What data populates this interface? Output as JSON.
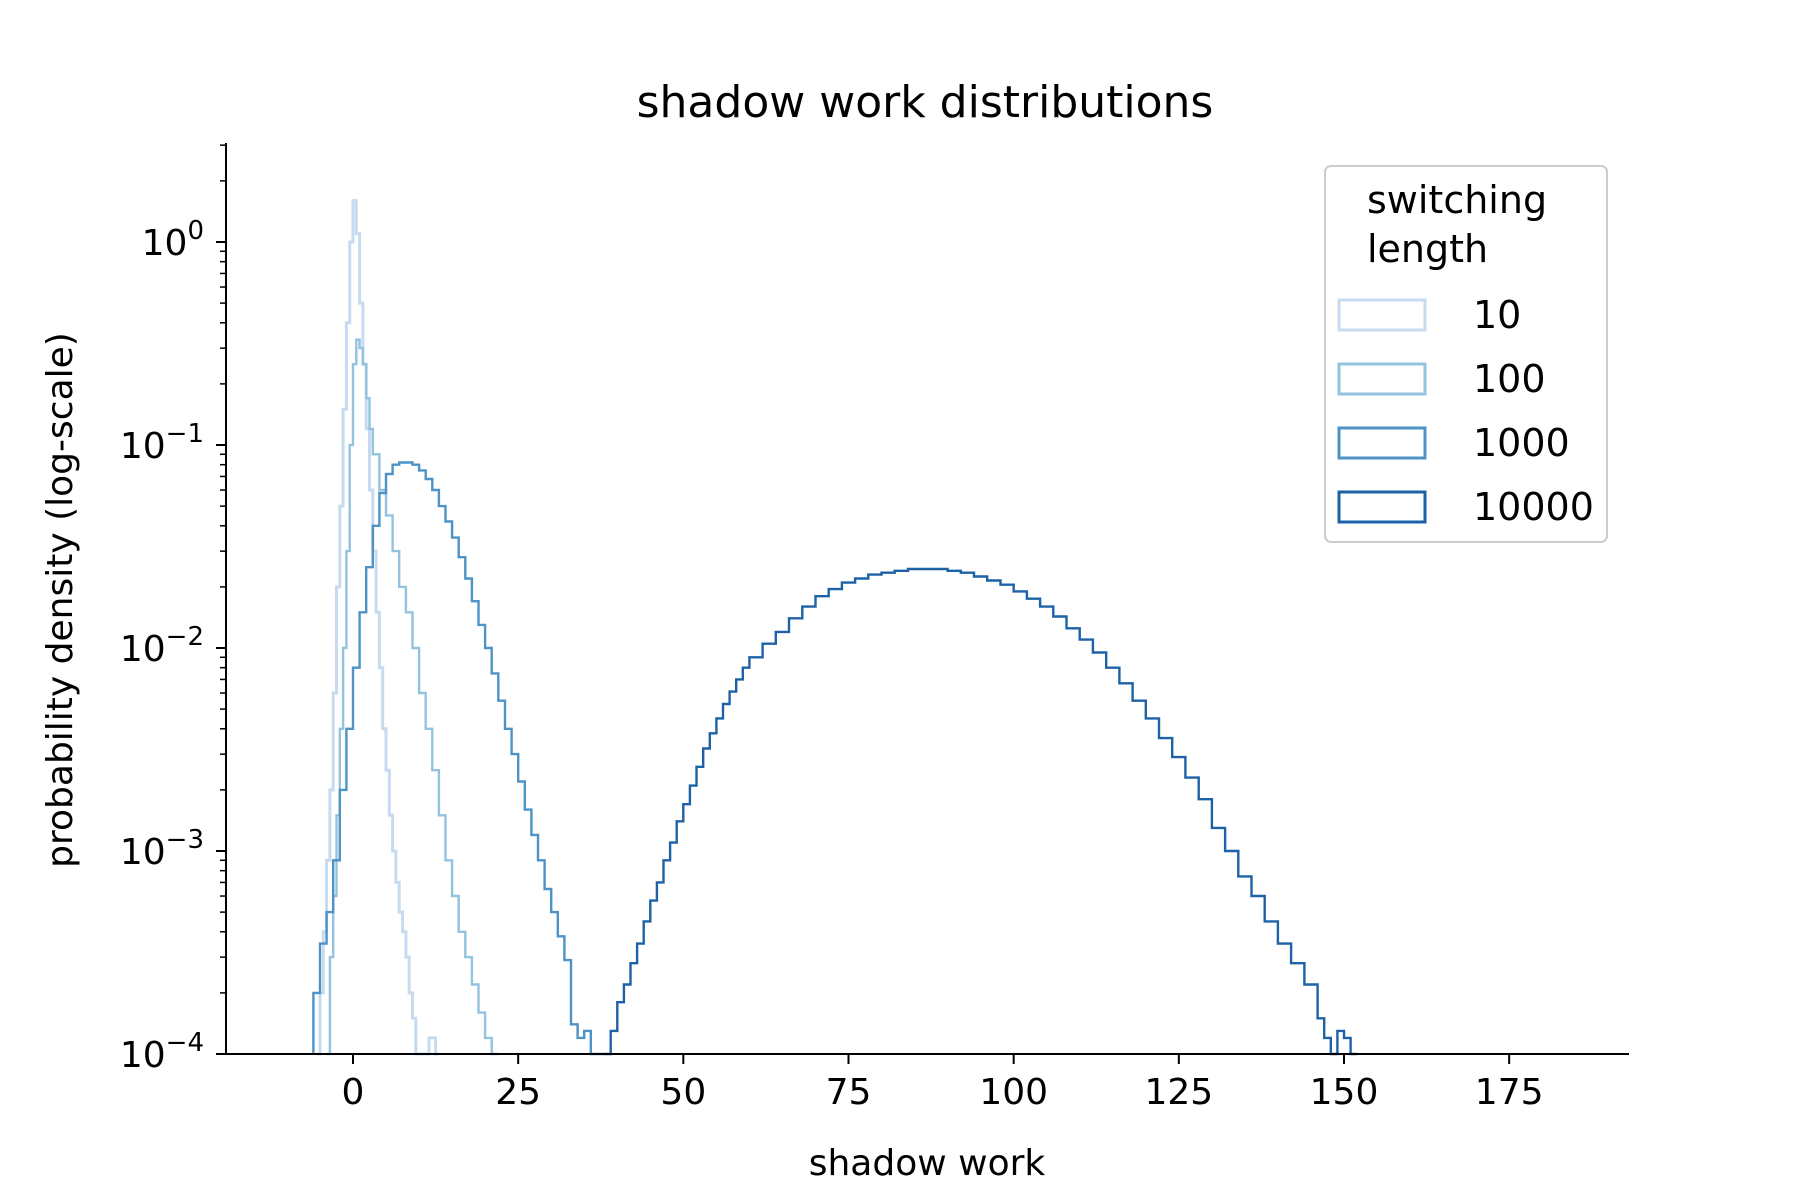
{
  "chart_data": {
    "type": "histogram (step)",
    "title": "shadow work distributions",
    "xlabel": "shadow work",
    "ylabel": "probability density (log-scale)",
    "xlim": [
      -20,
      193
    ],
    "ylim": [
      0.0001,
      3
    ],
    "yscale": "log",
    "x_ticks": [
      {
        "value": 0,
        "label": "0"
      },
      {
        "value": 25,
        "label": "25"
      },
      {
        "value": 50,
        "label": "50"
      },
      {
        "value": 75,
        "label": "75"
      },
      {
        "value": 100,
        "label": "100"
      },
      {
        "value": 125,
        "label": "125"
      },
      {
        "value": 150,
        "label": "150"
      },
      {
        "value": 175,
        "label": "175"
      }
    ],
    "y_ticks": [
      {
        "exp": 0,
        "base": "10",
        "sup": "0"
      },
      {
        "exp": -1,
        "base": "10",
        "sup": "−1"
      },
      {
        "exp": -2,
        "base": "10",
        "sup": "−2"
      },
      {
        "exp": -3,
        "base": "10",
        "sup": "−3"
      },
      {
        "exp": -4,
        "base": "10",
        "sup": "−4"
      }
    ],
    "grid": false,
    "legend": {
      "title_lines": [
        "switching",
        "length"
      ],
      "placement": "top-right"
    },
    "series": [
      {
        "name": "10",
        "color": "#c6dbef",
        "points": [
          [
            -5.5,
            0.0001
          ],
          [
            -5,
            0.0002
          ],
          [
            -4.5,
            0.0004
          ],
          [
            -4,
            0.0009
          ],
          [
            -3.5,
            0.002
          ],
          [
            -3,
            0.006
          ],
          [
            -2.5,
            0.02
          ],
          [
            -2,
            0.05
          ],
          [
            -1.5,
            0.15
          ],
          [
            -1,
            0.4
          ],
          [
            -0.5,
            1.0
          ],
          [
            0,
            1.6
          ],
          [
            0.5,
            1.1
          ],
          [
            1,
            0.5
          ],
          [
            1.5,
            0.25
          ],
          [
            2,
            0.12
          ],
          [
            2.5,
            0.06
          ],
          [
            3,
            0.03
          ],
          [
            3.5,
            0.015
          ],
          [
            4,
            0.008
          ],
          [
            4.5,
            0.004
          ],
          [
            5,
            0.0025
          ],
          [
            5.5,
            0.0015
          ],
          [
            6,
            0.001
          ],
          [
            6.5,
            0.0007
          ],
          [
            7,
            0.0005
          ],
          [
            7.5,
            0.0004
          ],
          [
            8,
            0.0003
          ],
          [
            8.5,
            0.0002
          ],
          [
            9,
            0.00015
          ],
          [
            9.5,
            0.0001
          ],
          [
            10,
            0.0001
          ],
          [
            10.5,
            0.0001
          ],
          [
            11,
            0.0001
          ],
          [
            11.5,
            0.00012
          ],
          [
            12,
            0.00012
          ],
          [
            12.5,
            0.0001
          ]
        ]
      },
      {
        "name": "100",
        "color": "#93c3de",
        "points": [
          [
            -4,
            0.0001
          ],
          [
            -3.5,
            0.0003
          ],
          [
            -3,
            0.0006
          ],
          [
            -2.5,
            0.0015
          ],
          [
            -2,
            0.004
          ],
          [
            -1.5,
            0.01
          ],
          [
            -1,
            0.03
          ],
          [
            -0.5,
            0.1
          ],
          [
            0,
            0.25
          ],
          [
            0.5,
            0.33
          ],
          [
            1,
            0.3
          ],
          [
            1.5,
            0.25
          ],
          [
            2,
            0.17
          ],
          [
            2.5,
            0.12
          ],
          [
            3,
            0.09
          ],
          [
            4,
            0.06
          ],
          [
            5,
            0.045
          ],
          [
            6,
            0.03
          ],
          [
            7,
            0.02
          ],
          [
            8,
            0.015
          ],
          [
            9,
            0.01
          ],
          [
            10,
            0.006
          ],
          [
            11,
            0.004
          ],
          [
            12,
            0.0025
          ],
          [
            13,
            0.0015
          ],
          [
            14,
            0.0009
          ],
          [
            15,
            0.0006
          ],
          [
            16,
            0.0004
          ],
          [
            17,
            0.0003
          ],
          [
            18,
            0.00022
          ],
          [
            19,
            0.00016
          ],
          [
            20,
            0.00012
          ],
          [
            21,
            0.0001
          ]
        ]
      },
      {
        "name": "1000",
        "color": "#4d93c6",
        "points": [
          [
            -6,
            0.0002
          ],
          [
            -5,
            0.00035
          ],
          [
            -4,
            0.0005
          ],
          [
            -3,
            0.0009
          ],
          [
            -2,
            0.002
          ],
          [
            -1,
            0.004
          ],
          [
            0,
            0.008
          ],
          [
            1,
            0.015
          ],
          [
            2,
            0.025
          ],
          [
            3,
            0.04
          ],
          [
            4,
            0.058
          ],
          [
            5,
            0.072
          ],
          [
            6,
            0.08
          ],
          [
            7,
            0.082
          ],
          [
            8,
            0.082
          ],
          [
            9,
            0.08
          ],
          [
            10,
            0.075
          ],
          [
            11,
            0.068
          ],
          [
            12,
            0.06
          ],
          [
            13,
            0.05
          ],
          [
            14,
            0.042
          ],
          [
            15,
            0.035
          ],
          [
            16,
            0.028
          ],
          [
            17,
            0.022
          ],
          [
            18,
            0.017
          ],
          [
            19,
            0.013
          ],
          [
            20,
            0.01
          ],
          [
            21,
            0.0075
          ],
          [
            22,
            0.0055
          ],
          [
            23,
            0.004
          ],
          [
            24,
            0.003
          ],
          [
            25,
            0.0022
          ],
          [
            26,
            0.0016
          ],
          [
            27,
            0.0012
          ],
          [
            28,
            0.0009
          ],
          [
            29,
            0.00065
          ],
          [
            30,
            0.0005
          ],
          [
            31,
            0.00038
          ],
          [
            32,
            0.00029
          ],
          [
            33,
            0.00014
          ],
          [
            34,
            0.00012
          ],
          [
            35,
            0.00013
          ],
          [
            36,
            0.0001
          ],
          [
            37,
            0.0001
          ]
        ]
      },
      {
        "name": "10000",
        "color": "#1d62a6",
        "points": [
          [
            38,
            0.0001
          ],
          [
            39,
            0.00013
          ],
          [
            40,
            0.00018
          ],
          [
            41,
            0.00022
          ],
          [
            42,
            0.00028
          ],
          [
            43,
            0.00035
          ],
          [
            44,
            0.00045
          ],
          [
            45,
            0.00057
          ],
          [
            46,
            0.0007
          ],
          [
            47,
            0.0009
          ],
          [
            48,
            0.0011
          ],
          [
            49,
            0.0014
          ],
          [
            50,
            0.0017
          ],
          [
            51,
            0.0021
          ],
          [
            52,
            0.0026
          ],
          [
            53,
            0.0032
          ],
          [
            54,
            0.0038
          ],
          [
            55,
            0.0045
          ],
          [
            56,
            0.0053
          ],
          [
            57,
            0.0061
          ],
          [
            58,
            0.007
          ],
          [
            59,
            0.008
          ],
          [
            60,
            0.009
          ],
          [
            62,
            0.0105
          ],
          [
            64,
            0.012
          ],
          [
            66,
            0.014
          ],
          [
            68,
            0.016
          ],
          [
            70,
            0.018
          ],
          [
            72,
            0.0195
          ],
          [
            74,
            0.021
          ],
          [
            76,
            0.022
          ],
          [
            78,
            0.023
          ],
          [
            80,
            0.0235
          ],
          [
            82,
            0.024
          ],
          [
            84,
            0.0245
          ],
          [
            86,
            0.0245
          ],
          [
            88,
            0.0245
          ],
          [
            90,
            0.024
          ],
          [
            92,
            0.0235
          ],
          [
            94,
            0.0225
          ],
          [
            96,
            0.0215
          ],
          [
            98,
            0.0205
          ],
          [
            100,
            0.019
          ],
          [
            102,
            0.0175
          ],
          [
            104,
            0.016
          ],
          [
            106,
            0.0143
          ],
          [
            108,
            0.0125
          ],
          [
            110,
            0.011
          ],
          [
            112,
            0.0095
          ],
          [
            114,
            0.008
          ],
          [
            116,
            0.0067
          ],
          [
            118,
            0.0055
          ],
          [
            120,
            0.0045
          ],
          [
            122,
            0.0036
          ],
          [
            124,
            0.0029
          ],
          [
            126,
            0.0023
          ],
          [
            128,
            0.0018
          ],
          [
            130,
            0.0013
          ],
          [
            132,
            0.001
          ],
          [
            134,
            0.00075
          ],
          [
            136,
            0.0006
          ],
          [
            138,
            0.00045
          ],
          [
            140,
            0.00035
          ],
          [
            142,
            0.00028
          ],
          [
            144,
            0.00022
          ],
          [
            146,
            0.00015
          ],
          [
            147,
            0.00012
          ],
          [
            148,
            0.0001
          ],
          [
            149,
            0.00013
          ],
          [
            150,
            0.00012
          ],
          [
            151,
            0.0001
          ]
        ]
      }
    ]
  }
}
